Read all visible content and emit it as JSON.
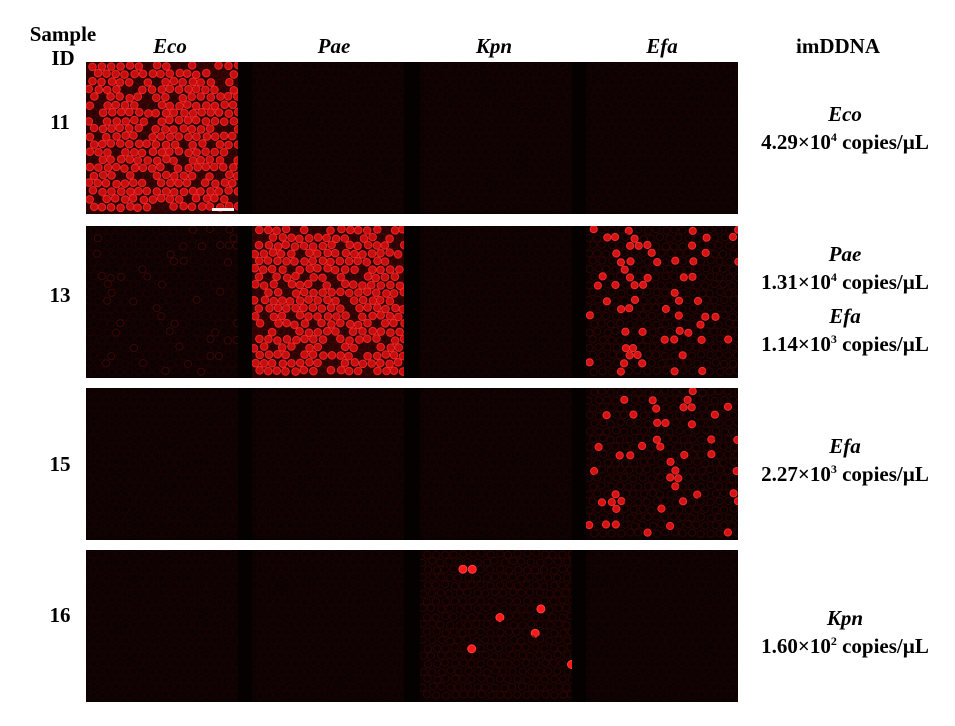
{
  "header": {
    "sample_id_line1": "Sample",
    "sample_id_line2": "ID",
    "columns": [
      "Eco",
      "Pae",
      "Kpn",
      "Efa"
    ],
    "result_label": "imDDNA"
  },
  "rows": [
    {
      "id": "11",
      "tiles": [
        "high",
        "dim",
        "dim",
        "dim"
      ],
      "scale_bar": true,
      "results": [
        {
          "organism": "Eco",
          "mantissa": "4.29×10",
          "exponent": "4",
          "unit": " copies/µL"
        }
      ]
    },
    {
      "id": "13",
      "tiles": [
        "ring",
        "high",
        "dim",
        "sparse"
      ],
      "scale_bar": false,
      "results": [
        {
          "organism": "Pae",
          "mantissa": "1.31×10",
          "exponent": "4",
          "unit": " copies/µL"
        },
        {
          "organism": "Efa",
          "mantissa": "1.14×10",
          "exponent": "3",
          "unit": " copies/µL"
        }
      ]
    },
    {
      "id": "15",
      "tiles": [
        "dim",
        "dim",
        "dim",
        "sparse"
      ],
      "scale_bar": false,
      "results": [
        {
          "organism": "Efa",
          "mantissa": "2.27×10",
          "exponent": "3",
          "unit": " copies/µL"
        }
      ]
    },
    {
      "id": "16",
      "tiles": [
        "dim",
        "dim",
        "few",
        "dim"
      ],
      "scale_bar": false,
      "results": [
        {
          "organism": "Kpn",
          "mantissa": "1.60×10",
          "exponent": "2",
          "unit": " copies/µL"
        }
      ]
    }
  ],
  "colors": {
    "background": "#050101",
    "positive_droplet": "#e01010",
    "negative_droplet": "#3a0606",
    "separator": "#111111"
  }
}
